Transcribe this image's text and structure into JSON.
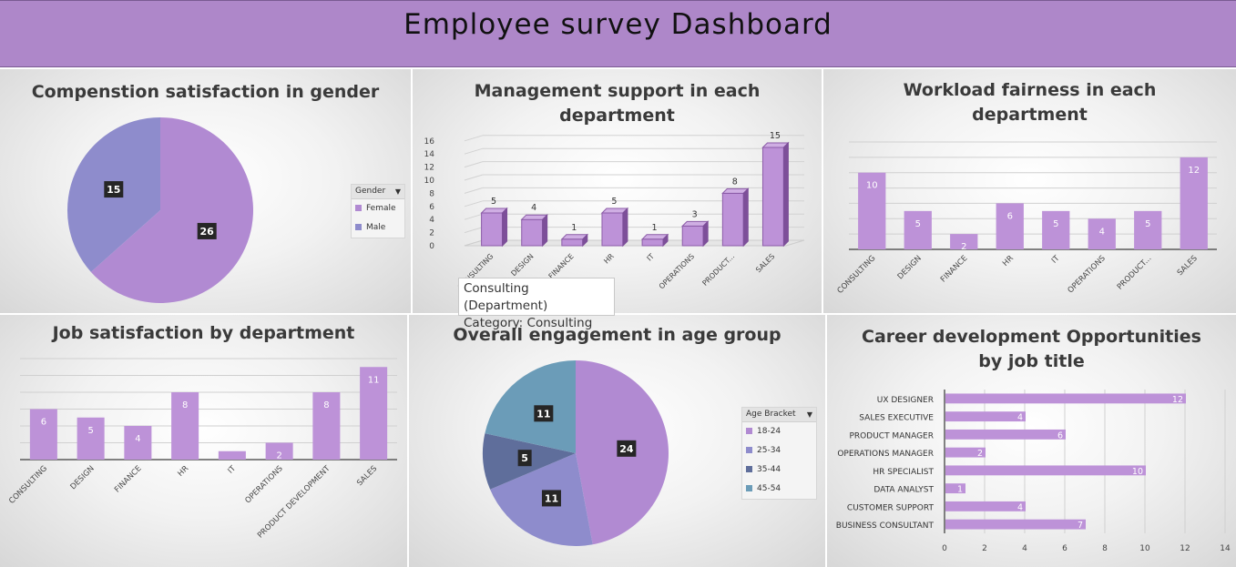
{
  "header": {
    "title": "Employee survey Dashboard"
  },
  "colors": {
    "header": "#ae87c9",
    "purple": "#b18ad2",
    "bar": "#bd92d8",
    "bar_dark": "#8c5ca8",
    "periwinkle": "#8e8ccc",
    "slate": "#5f6e9b",
    "teal": "#6b9cb8"
  },
  "tooltip": {
    "line1": "Consulting (Department)",
    "line2": "Category: Consulting"
  },
  "charts": {
    "gender": {
      "title": "Compenstion satisfaction in gender",
      "legend": {
        "title": "Gender",
        "items": [
          "Female",
          "Male"
        ]
      }
    },
    "management": {
      "title_line1": "Management support in each",
      "title_line2": "department"
    },
    "workload": {
      "title_line1": "Workload fairness in each",
      "title_line2": "department"
    },
    "job": {
      "title": "Job satisfaction by department"
    },
    "age": {
      "title": "Overall engagement in age group",
      "legend": {
        "title": "Age Bracket",
        "items": [
          "18-24",
          "25-34",
          "35-44",
          "45-54"
        ]
      }
    },
    "career": {
      "title_line1": "Career development Opportunities",
      "title_line2": "by job title"
    }
  },
  "chart_data": [
    {
      "id": "gender",
      "type": "pie",
      "title": "Compenstion satisfaction in gender",
      "categories": [
        "Female",
        "Male"
      ],
      "values": [
        26,
        15
      ],
      "colors": [
        "#b18ad2",
        "#8e8ccc"
      ]
    },
    {
      "id": "management",
      "type": "bar",
      "title": "Management support in each department",
      "categories": [
        "CONSULTING",
        "DESIGN",
        "FINANCE",
        "HR",
        "IT",
        "OPERATIONS",
        "PRODUCT DEVELOPMENT",
        "SALES"
      ],
      "tick_labels": [
        "CONSULTING",
        "DESIGN",
        "FINANCE",
        "HR",
        "IT",
        "OPERATIONS",
        "PRODUCT...",
        "SALES"
      ],
      "values": [
        5,
        4,
        1,
        5,
        1,
        3,
        8,
        15
      ],
      "ylim": [
        0,
        16
      ],
      "yticks": [
        0,
        2,
        4,
        6,
        8,
        10,
        12,
        14,
        16
      ]
    },
    {
      "id": "workload",
      "type": "bar",
      "title": "Workload fairness in each department",
      "categories": [
        "CONSULTING",
        "DESIGN",
        "FINANCE",
        "HR",
        "IT",
        "OPERATIONS",
        "PRODUCT DEVELOPMENT",
        "SALES"
      ],
      "tick_labels": [
        "CONSULTING",
        "DESIGN",
        "FINANCE",
        "HR",
        "IT",
        "OPERATIONS",
        "PRODUCT...",
        "SALES"
      ],
      "values": [
        10,
        5,
        2,
        6,
        5,
        4,
        5,
        12
      ],
      "ylim": [
        0,
        14
      ]
    },
    {
      "id": "job",
      "type": "bar",
      "title": "Job satisfaction by department",
      "categories": [
        "CONSULTING",
        "DESIGN",
        "FINANCE",
        "HR",
        "IT",
        "OPERATIONS",
        "PRODUCT DEVELOPMENT",
        "SALES"
      ],
      "tick_labels": [
        "CONSULTING",
        "DESIGN",
        "FINANCE",
        "HR",
        "IT",
        "OPERATIONS",
        "PRODUCT DEVELOPMENT",
        "SALES"
      ],
      "values": [
        6,
        5,
        4,
        8,
        1,
        2,
        8,
        11
      ],
      "ylim": [
        0,
        12
      ]
    },
    {
      "id": "age",
      "type": "pie",
      "title": "Overall engagement in age group",
      "categories": [
        "18-24",
        "25-34",
        "35-44",
        "45-54"
      ],
      "values": [
        24,
        11,
        5,
        11
      ],
      "colors": [
        "#b18ad2",
        "#8e8ccc",
        "#5f6e9b",
        "#6b9cb8"
      ]
    },
    {
      "id": "career",
      "type": "bar",
      "orientation": "horizontal",
      "title": "Career development Opportunities by job title",
      "categories": [
        "UX DESIGNER",
        "SALES EXECUTIVE",
        "PRODUCT MANAGER",
        "OPERATIONS  MANAGER",
        "HR SPECIALIST",
        "DATA ANALYST",
        "CUSTOMER  SUPPORT",
        "BUSINESS  CONSULTANT"
      ],
      "values": [
        12,
        4,
        6,
        2,
        10,
        1,
        4,
        7
      ],
      "xlim": [
        0,
        14
      ],
      "xticks": [
        0,
        2,
        4,
        6,
        8,
        10,
        12,
        14
      ]
    }
  ]
}
